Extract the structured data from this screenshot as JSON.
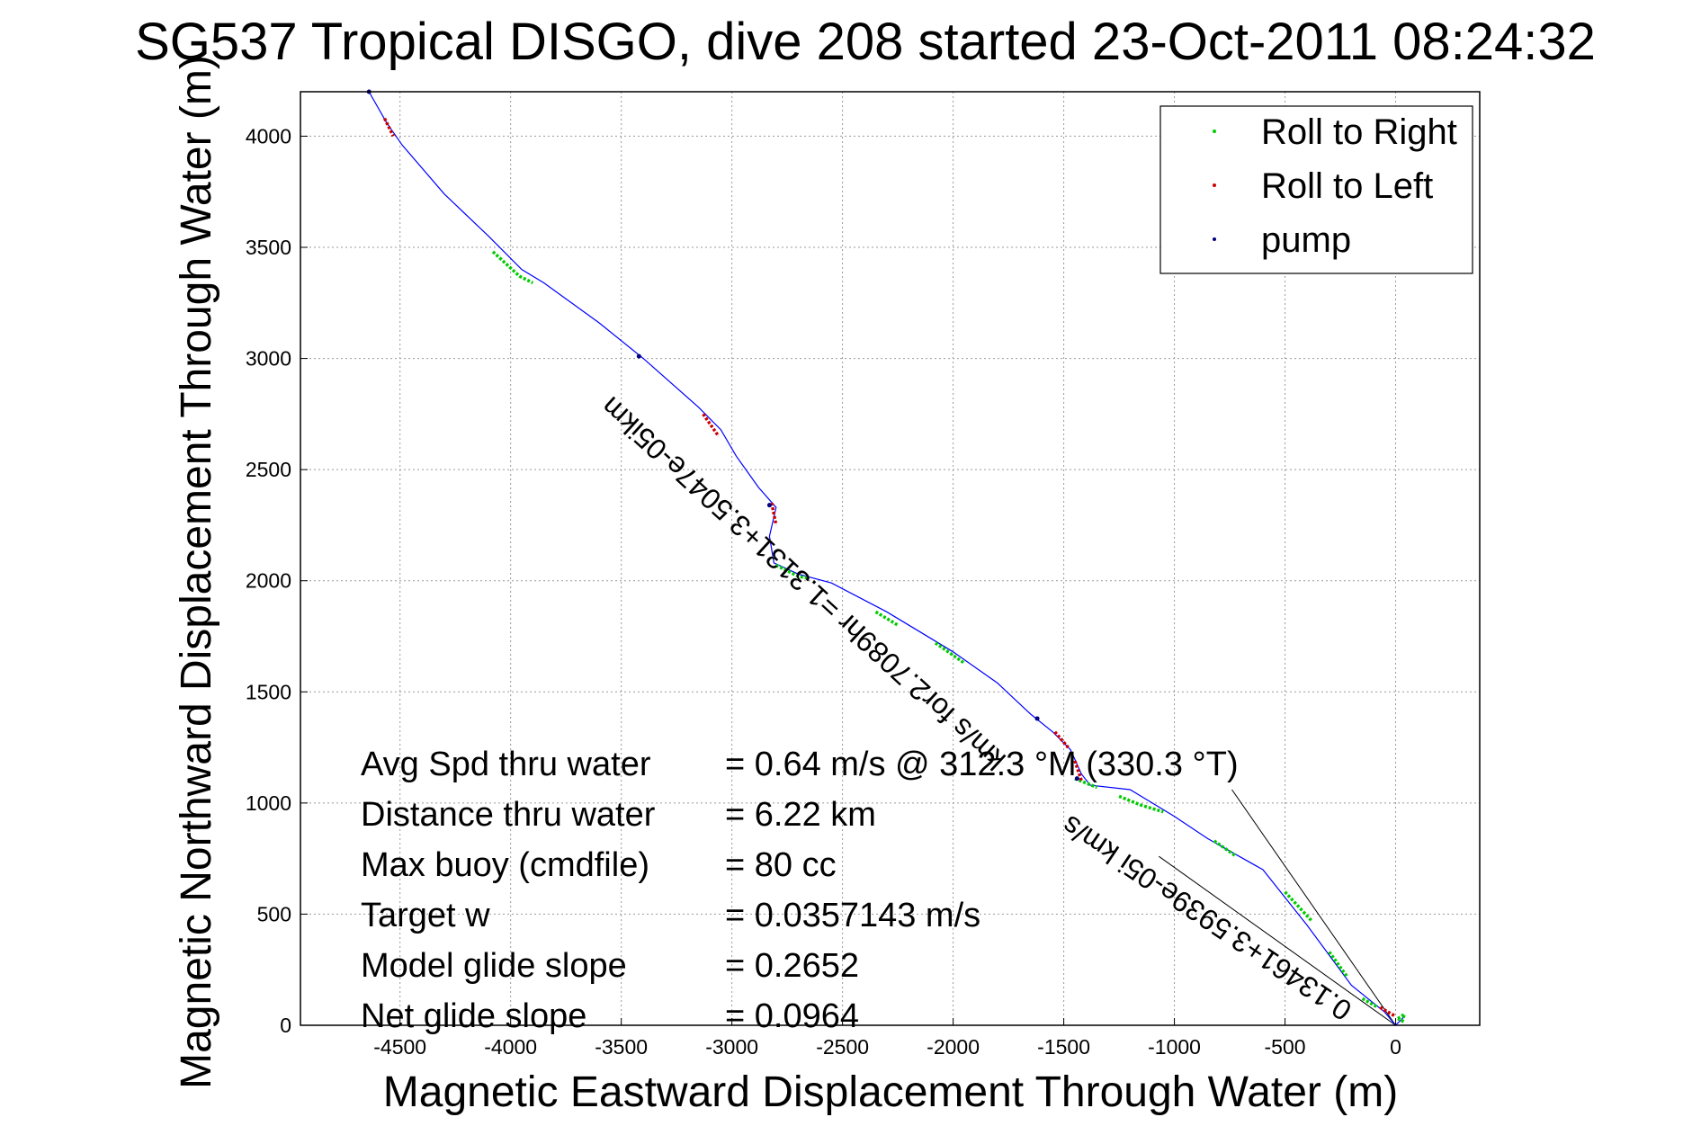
{
  "chart_data": {
    "type": "line",
    "title": "SG537 Tropical DISGO, dive 208 started 23-Oct-2011 08:24:32",
    "xlabel": "Magnetic Eastward Displacement Through Water (m)",
    "ylabel": "Magnetic Northward Displacement Through Water (m)",
    "xlim": [
      -4950,
      380
    ],
    "ylim": [
      0,
      4200
    ],
    "xticks": [
      "-4500",
      "-4000",
      "-3500",
      "-3000",
      "-2500",
      "-2000",
      "-1500",
      "-1000",
      "-500",
      "0"
    ],
    "xtick_values": [
      -4500,
      -4000,
      -3500,
      -3000,
      -2500,
      -2000,
      -1500,
      -1000,
      -500,
      0
    ],
    "yticks": [
      "0",
      "500",
      "1000",
      "1500",
      "2000",
      "2500",
      "3000",
      "3500",
      "4000"
    ],
    "ytick_values": [
      0,
      500,
      1000,
      1500,
      2000,
      2500,
      3000,
      3500,
      4000
    ],
    "grid": true,
    "legend_position": "top-right",
    "legend": [
      {
        "label": "Roll to Right",
        "color": "#00cc00"
      },
      {
        "label": "Roll to Left",
        "color": "#cc0000"
      },
      {
        "label": "pump",
        "color": "#000080"
      }
    ],
    "track_color": "#0000ff",
    "track": [
      [
        -4640,
        4200
      ],
      [
        -4560,
        4060
      ],
      [
        -4490,
        3960
      ],
      [
        -4300,
        3740
      ],
      [
        -4100,
        3550
      ],
      [
        -3950,
        3400
      ],
      [
        -3850,
        3340
      ],
      [
        -3600,
        3160
      ],
      [
        -3400,
        3000
      ],
      [
        -3150,
        2780
      ],
      [
        -3050,
        2680
      ],
      [
        -2980,
        2560
      ],
      [
        -2880,
        2420
      ],
      [
        -2800,
        2330
      ],
      [
        -2830,
        2200
      ],
      [
        -2810,
        2080
      ],
      [
        -2700,
        2030
      ],
      [
        -2550,
        1990
      ],
      [
        -2300,
        1860
      ],
      [
        -2000,
        1680
      ],
      [
        -1800,
        1540
      ],
      [
        -1650,
        1400
      ],
      [
        -1550,
        1320
      ],
      [
        -1470,
        1240
      ],
      [
        -1420,
        1130
      ],
      [
        -1380,
        1080
      ],
      [
        -1200,
        1060
      ],
      [
        -1000,
        940
      ],
      [
        -850,
        840
      ],
      [
        -600,
        700
      ],
      [
        -400,
        450
      ],
      [
        -200,
        180
      ],
      [
        -50,
        60
      ],
      [
        0,
        0
      ],
      [
        40,
        40
      ]
    ],
    "roll_right_segments": [
      [
        [
          -4080,
          3480
        ],
        [
          -3960,
          3370
        ],
        [
          -3900,
          3340
        ]
      ],
      [
        [
          -2800,
          2070
        ],
        [
          -2700,
          2020
        ],
        [
          -2650,
          2010
        ]
      ],
      [
        [
          -2350,
          1860
        ],
        [
          -2250,
          1800
        ]
      ],
      [
        [
          -2080,
          1720
        ],
        [
          -1950,
          1630
        ]
      ],
      [
        [
          -1450,
          1110
        ],
        [
          -1350,
          1070
        ]
      ],
      [
        [
          -1250,
          1030
        ],
        [
          -1150,
          990
        ],
        [
          -1050,
          960
        ]
      ],
      [
        [
          -820,
          830
        ],
        [
          -720,
          760
        ]
      ],
      [
        [
          -500,
          600
        ],
        [
          -380,
          470
        ]
      ],
      [
        [
          -300,
          330
        ],
        [
          -220,
          220
        ]
      ],
      [
        [
          -150,
          120
        ],
        [
          -80,
          80
        ]
      ],
      [
        [
          10,
          30
        ],
        [
          40,
          50
        ],
        [
          30,
          20
        ],
        [
          10,
          30
        ]
      ]
    ],
    "roll_left_segments": [
      [
        [
          -4570,
          4080
        ],
        [
          -4530,
          4000
        ]
      ],
      [
        [
          -3130,
          2750
        ],
        [
          -3060,
          2650
        ]
      ],
      [
        [
          -2820,
          2350
        ],
        [
          -2800,
          2250
        ]
      ],
      [
        [
          -1540,
          1320
        ],
        [
          -1480,
          1250
        ]
      ],
      [
        [
          -1450,
          1190
        ],
        [
          -1420,
          1100
        ]
      ],
      [
        [
          -70,
          80
        ],
        [
          0,
          40
        ]
      ]
    ],
    "pump_points": [
      [
        -4640,
        4200
      ],
      [
        -3420,
        3010
      ],
      [
        -2830,
        2340
      ],
      [
        -1620,
        1380
      ],
      [
        -1440,
        1110
      ]
    ],
    "current_lines": [
      [
        [
          0,
          0
        ],
        [
          -740,
          1060
        ]
      ],
      [
        [
          0,
          0
        ],
        [
          -1070,
          760
        ]
      ]
    ],
    "stats": [
      {
        "label": "Avg Spd thru water",
        "value": "=  0.64 m/s @ 312.3 °M (330.3 °T)"
      },
      {
        "label": "Distance thru water",
        "value": "=  6.22 km"
      },
      {
        "label": "Max buoy (cmdfile)",
        "value": "= 80 cc"
      },
      {
        "label": "Target w",
        "value": "= 0.0357143 m/s"
      },
      {
        "label": "Model glide slope",
        "value": "= 0.2652"
      },
      {
        "label": "Net glide slope",
        "value": "= 0.0964"
      }
    ],
    "rotated_annotations": [
      "km/s for2.7089hr =1.3131+3.5047e-05ikm",
      "0.13461+3.5939e-05i km/s"
    ]
  }
}
